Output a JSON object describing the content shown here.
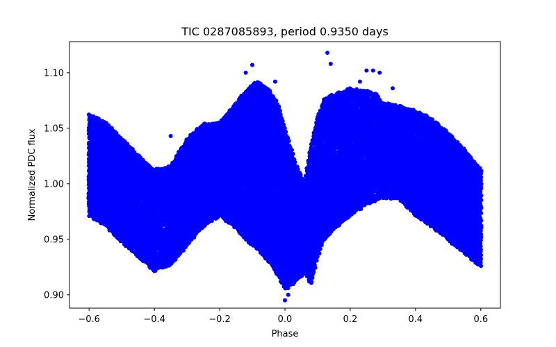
{
  "chart_data": {
    "type": "scatter",
    "title": "TIC 0287085893, period 0.9350 days",
    "xlabel": "Phase",
    "ylabel": "Normalized PDC flux",
    "xlim": [
      -0.66,
      0.66
    ],
    "ylim": [
      0.888,
      1.128
    ],
    "x_ticks": [
      -0.6,
      -0.4,
      -0.2,
      0.0,
      0.2,
      0.4,
      0.6
    ],
    "x_tick_labels": [
      "−0.6",
      "−0.4",
      "−0.2",
      "0.0",
      "0.2",
      "0.4",
      "0.6"
    ],
    "y_ticks": [
      0.9,
      0.95,
      1.0,
      1.05,
      1.1
    ],
    "y_tick_labels": [
      "0.90",
      "0.95",
      "1.00",
      "1.05",
      "1.10"
    ],
    "grid": false,
    "marker_color": "#0000ff",
    "series": [
      {
        "name": "",
        "description_points": "dense band of phase-folded photometry",
        "upper_envelope": {
          "x": [
            -0.6,
            -0.55,
            -0.5,
            -0.45,
            -0.4,
            -0.35,
            -0.3,
            -0.25,
            -0.2,
            -0.15,
            -0.12,
            -0.1,
            -0.08,
            -0.05,
            -0.02,
            0.0,
            0.03,
            0.06,
            0.08,
            0.1,
            0.12,
            0.15,
            0.2,
            0.25,
            0.28,
            0.3,
            0.35,
            0.4,
            0.45,
            0.5,
            0.55,
            0.6
          ],
          "y": [
            1.062,
            1.055,
            1.04,
            1.025,
            1.012,
            1.015,
            1.04,
            1.053,
            1.055,
            1.072,
            1.083,
            1.089,
            1.091,
            1.085,
            1.07,
            1.05,
            1.02,
            1.0,
            1.035,
            1.06,
            1.075,
            1.08,
            1.085,
            1.083,
            1.08,
            1.072,
            1.07,
            1.065,
            1.058,
            1.045,
            1.03,
            1.012
          ]
        },
        "lower_envelope": {
          "x": [
            -0.6,
            -0.55,
            -0.5,
            -0.45,
            -0.4,
            -0.35,
            -0.3,
            -0.25,
            -0.2,
            -0.15,
            -0.12,
            -0.1,
            -0.08,
            -0.05,
            -0.02,
            0.0,
            0.03,
            0.06,
            0.08,
            0.1,
            0.12,
            0.15,
            0.2,
            0.25,
            0.3,
            0.35,
            0.4,
            0.45,
            0.5,
            0.55,
            0.6
          ],
          "y": [
            0.972,
            0.963,
            0.948,
            0.935,
            0.922,
            0.928,
            0.945,
            0.962,
            0.972,
            0.96,
            0.95,
            0.945,
            0.94,
            0.93,
            0.918,
            0.905,
            0.912,
            0.92,
            0.91,
            0.935,
            0.95,
            0.96,
            0.972,
            0.982,
            0.988,
            0.987,
            0.972,
            0.962,
            0.95,
            0.938,
            0.926
          ]
        },
        "outliers": {
          "x": [
            0.13,
            0.14,
            -0.1,
            -0.12,
            0.25,
            0.27,
            0.29,
            0.33,
            0.23,
            -0.35,
            -0.03,
            0.12,
            0.1,
            0.09,
            0.0,
            0.01
          ],
          "y": [
            1.118,
            1.108,
            1.107,
            1.1,
            1.102,
            1.102,
            1.1,
            1.086,
            1.092,
            1.043,
            1.092,
            1.07,
            1.055,
            1.03,
            0.895,
            0.9
          ]
        }
      }
    ]
  }
}
